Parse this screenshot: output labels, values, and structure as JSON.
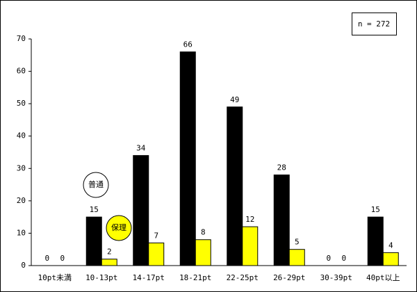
{
  "chart_data": {
    "type": "bar",
    "annotation": "n = 272",
    "categories": [
      "10pt未満",
      "10-13pt",
      "14-17pt",
      "18-21pt",
      "22-25pt",
      "26-29pt",
      "30-39pt",
      "40pt以上"
    ],
    "series": [
      {
        "name": "普通",
        "color": "#000000",
        "values": [
          0,
          15,
          34,
          66,
          49,
          28,
          0,
          15
        ]
      },
      {
        "name": "保理",
        "color": "#ffff00",
        "values": [
          0,
          2,
          7,
          8,
          12,
          5,
          0,
          4
        ]
      }
    ],
    "ylim": [
      0,
      70
    ],
    "yticks": [
      0,
      10,
      20,
      30,
      40,
      50,
      60,
      70
    ],
    "grid": false
  }
}
